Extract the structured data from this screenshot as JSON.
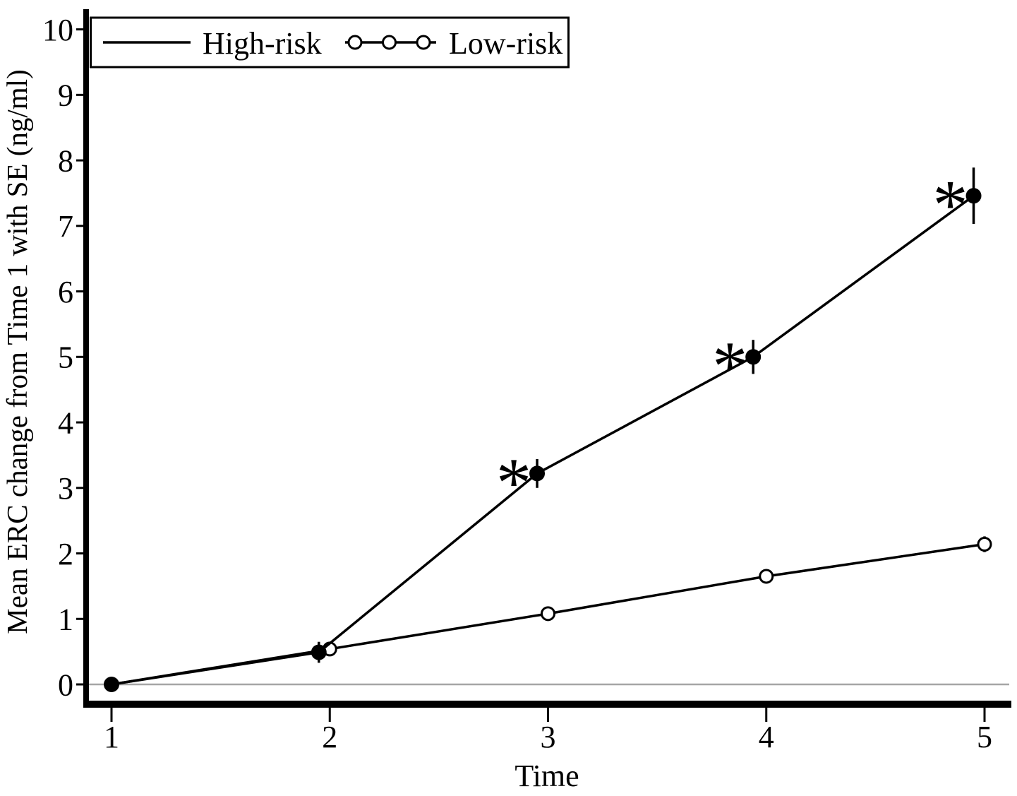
{
  "chart_data": {
    "type": "line",
    "xlabel": "Time",
    "ylabel": "Mean ERC change from Time 1 with SE (ng/ml)",
    "x_ticks": [
      1,
      2,
      3,
      4,
      5
    ],
    "y_ticks": [
      0,
      1,
      2,
      3,
      4,
      5,
      6,
      7,
      8,
      9,
      10
    ],
    "xlim": [
      0.88,
      5.12
    ],
    "ylim": [
      -0.25,
      10.3
    ],
    "grid": false,
    "legend_position": "top-left",
    "reference_line_y": 0,
    "significance_marker": "*",
    "series": [
      {
        "name": "High-risk",
        "marker": "filled-circle",
        "color": "#000000",
        "x": [
          1,
          1.95,
          2.95,
          3.94,
          4.95
        ],
        "values": [
          0,
          0.49,
          3.22,
          5.0,
          7.46
        ],
        "se": [
          0,
          0.16,
          0.22,
          0.26,
          0.43
        ],
        "significant": [
          false,
          false,
          true,
          true,
          true
        ]
      },
      {
        "name": "Low-risk",
        "marker": "open-circle",
        "color": "#000000",
        "x": [
          1,
          2,
          3,
          4,
          5
        ],
        "values": [
          0,
          0.54,
          1.08,
          1.65,
          2.14
        ],
        "se": [
          0,
          0.05,
          0.05,
          0.06,
          0.12
        ],
        "significant": [
          false,
          false,
          false,
          false,
          false
        ]
      }
    ],
    "colors": {
      "series": "#000000",
      "reference_line": "#a6a6a6",
      "background": "#ffffff"
    }
  }
}
